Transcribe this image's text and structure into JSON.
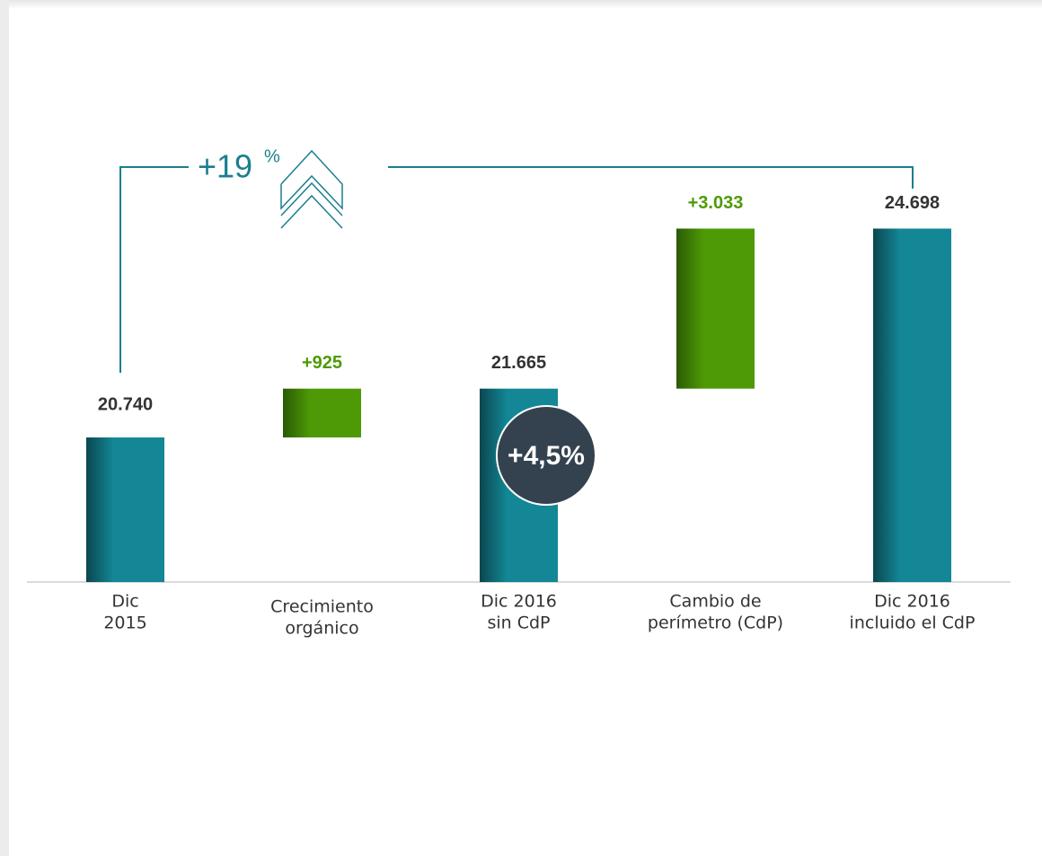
{
  "chart_data": {
    "type": "waterfall",
    "categories": [
      [
        "Dic",
        "2015"
      ],
      [
        "Crecimiento",
        "orgánico"
      ],
      [
        "Dic 2016",
        "sin CdP"
      ],
      [
        "Cambio de",
        "perímetro (CdP)"
      ],
      [
        "Dic  2016",
        "incluido el CdP"
      ]
    ],
    "values": [
      20740,
      925,
      21665,
      3033,
      24698
    ],
    "value_labels": [
      "20.740",
      "+925",
      "21.665",
      "+3.033",
      "24.698"
    ],
    "measure": [
      "total",
      "relative",
      "total",
      "relative",
      "total"
    ],
    "colors": {
      "total": "#138795",
      "relative": "#4e9a06"
    },
    "ylim": [
      18000,
      26000
    ],
    "annotations": {
      "total_growth": {
        "number": "+19",
        "unit": "%"
      },
      "organic_growth": "+4,5%"
    }
  }
}
